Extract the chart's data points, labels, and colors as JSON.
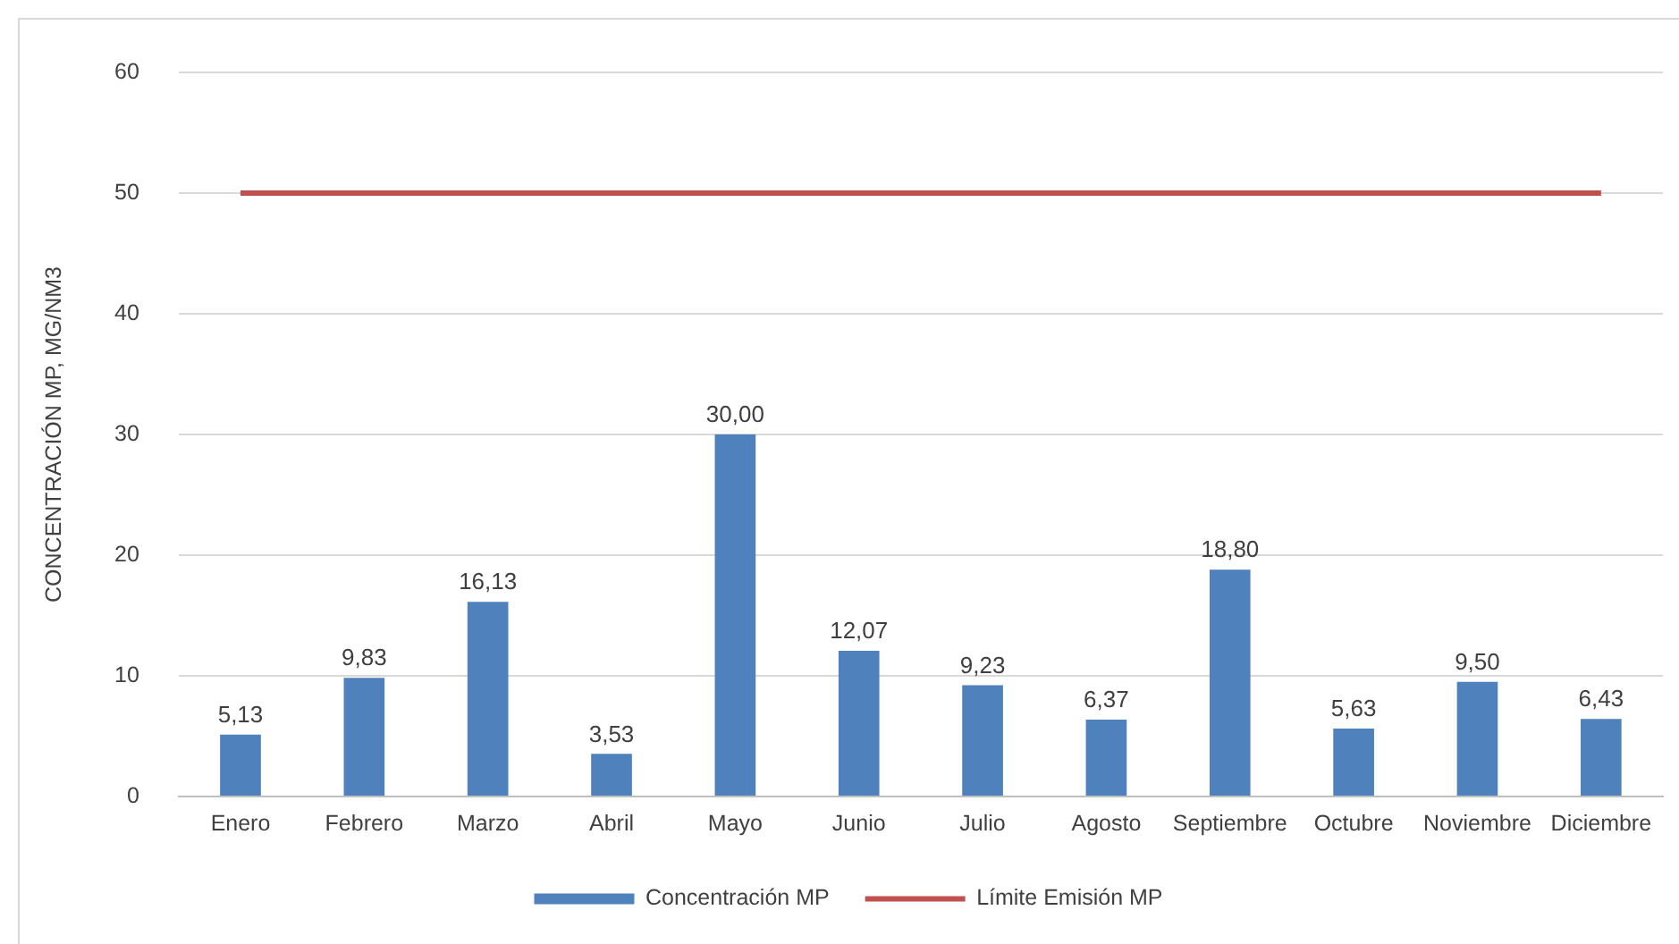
{
  "chart_data": {
    "type": "bar",
    "ylabel": "CONCENTRACIÓN MP, MG/NM3",
    "categories": [
      "Enero",
      "Febrero",
      "Marzo",
      "Abril",
      "Mayo",
      "Junio",
      "Julio",
      "Agosto",
      "Septiembre",
      "Octubre",
      "Noviembre",
      "Diciembre"
    ],
    "series": [
      {
        "name": "Concentración MP",
        "color": "#4f81bd",
        "values": [
          5.13,
          9.83,
          16.13,
          3.53,
          30.0,
          12.07,
          9.23,
          6.37,
          18.8,
          5.63,
          9.5,
          6.43
        ],
        "value_labels": [
          "5,13",
          "9,83",
          "16,13",
          "3,53",
          "30,00",
          "12,07",
          "9,23",
          "6,37",
          "18,80",
          "5,63",
          "9,50",
          "6,43"
        ]
      },
      {
        "name": "Límite Emisión MP",
        "type": "line",
        "color": "#c0504d",
        "values": [
          50,
          50,
          50,
          50,
          50,
          50,
          50,
          50,
          50,
          50,
          50,
          50
        ]
      }
    ],
    "ylim": [
      0,
      60
    ],
    "yticks": [
      0,
      10,
      20,
      30,
      40,
      50,
      60
    ],
    "grid": "y",
    "legend": "bottom",
    "marker": "none"
  }
}
